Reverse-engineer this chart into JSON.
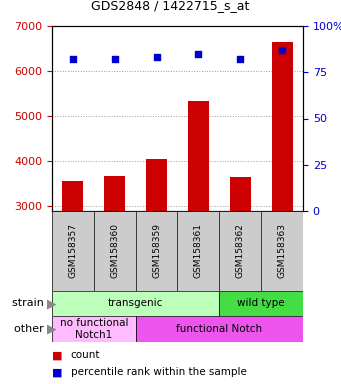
{
  "title": "GDS2848 / 1422715_s_at",
  "samples": [
    "GSM158357",
    "GSM158360",
    "GSM158359",
    "GSM158361",
    "GSM158362",
    "GSM158363"
  ],
  "counts": [
    3560,
    3680,
    4060,
    5340,
    3660,
    6650
  ],
  "percentiles": [
    82,
    82,
    83,
    85,
    82,
    87
  ],
  "ylim_left": [
    2900,
    7000
  ],
  "ylim_right": [
    0,
    100
  ],
  "yticks_left": [
    3000,
    4000,
    5000,
    6000,
    7000
  ],
  "yticks_right": [
    0,
    25,
    50,
    75,
    100
  ],
  "bar_color": "#cc0000",
  "dot_color": "#0000cc",
  "bar_bottom": 2900,
  "strain_groups": [
    {
      "label": "transgenic",
      "start": 0,
      "end": 3,
      "color": "#bbffbb"
    },
    {
      "label": "wild type",
      "start": 4,
      "end": 5,
      "color": "#44dd44"
    }
  ],
  "other_groups": [
    {
      "label": "no functional\nNotch1",
      "start": 0,
      "end": 1,
      "color": "#ffbbff"
    },
    {
      "label": "functional Notch",
      "start": 2,
      "end": 5,
      "color": "#ee55ee"
    }
  ],
  "tick_label_color_left": "#cc0000",
  "tick_label_color_right": "#0000cc",
  "sample_box_color": "#cccccc",
  "right_axis_pct_label": "100%"
}
